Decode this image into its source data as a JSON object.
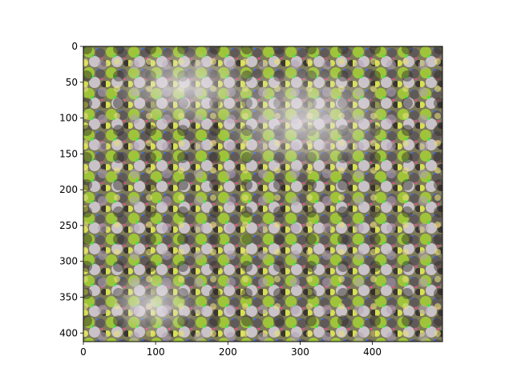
{
  "chart_data": {
    "type": "heatmap",
    "title": "",
    "xlabel": "",
    "ylabel": "",
    "xlim": [
      0,
      497
    ],
    "ylim": [
      412,
      0
    ],
    "x_ticks": [
      0,
      100,
      200,
      300,
      400
    ],
    "y_ticks": [
      0,
      50,
      100,
      150,
      200,
      250,
      300,
      350,
      400
    ],
    "grid": false,
    "legend": "none",
    "image": {
      "width": 497,
      "height": 412,
      "texture": "dense psychedelic texture of round shell-like blobs",
      "palette": [
        "#8fb82a",
        "#c8d94a",
        "#6e6a66",
        "#3a3634",
        "#d9d4d8",
        "#9c8fa0",
        "#b98a78",
        "#4ee04a",
        "#ff3fa0",
        "#2f6cff",
        "#e8e07a"
      ]
    }
  }
}
